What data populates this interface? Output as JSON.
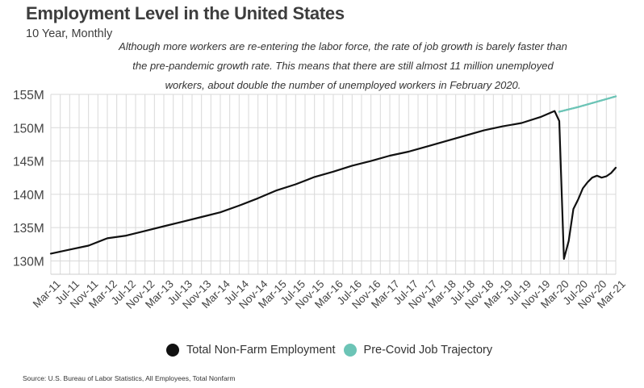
{
  "header": {
    "title": "Employment Level in the United States",
    "subtitle": "10 Year, Monthly",
    "note": "Although more workers are re-entering the labor force, the rate of job growth is barely faster than the pre-pandemic growth rate. This means that there are still almost 11 million unemployed workers, about double the number of unemployed workers in February 2020."
  },
  "source": "Source:  U.S. Bureau of Labor Statistics, All Employees, Total Nonfarm",
  "colors": {
    "total": "#111111",
    "trajectory": "#6cc4b6",
    "grid": "#d9d9d9"
  },
  "legend": [
    {
      "label": "Total Non-Farm Employment",
      "color": "#111111"
    },
    {
      "label": "Pre-Covid Job Trajectory",
      "color": "#6cc4b6"
    }
  ],
  "chart_data": {
    "type": "line",
    "x_unit": "month",
    "x_range": [
      "2011-03",
      "2021-03"
    ],
    "ylim": [
      128000000,
      155000000
    ],
    "y_ticks": [
      130000000,
      135000000,
      140000000,
      145000000,
      150000000,
      155000000
    ],
    "y_tick_labels": [
      "130M",
      "135M",
      "140M",
      "145M",
      "150M",
      "155M"
    ],
    "x_tick_labels": [
      "Mar-11",
      "Jul-11",
      "Nov-11",
      "Mar-12",
      "Jul-12",
      "Nov-12",
      "Mar-13",
      "Jul-13",
      "Nov-13",
      "Mar-14",
      "Jul-14",
      "Nov-14",
      "Mar-15",
      "Jul-15",
      "Nov-15",
      "Mar-16",
      "Jul-16",
      "Nov-16",
      "Mar-17",
      "Jul-17",
      "Nov-17",
      "Mar-18",
      "Jul-18",
      "Nov-18",
      "Mar-19",
      "Jul-19",
      "Nov-19",
      "Mar-20",
      "Jul-20",
      "Nov-20",
      "Mar-21"
    ],
    "grid": true,
    "legend_position": "bottom",
    "series": [
      {
        "name": "Total Non-Farm Employment",
        "x": [
          "2011-03",
          "2011-07",
          "2011-11",
          "2012-03",
          "2012-07",
          "2012-11",
          "2013-03",
          "2013-07",
          "2013-11",
          "2014-03",
          "2014-07",
          "2014-11",
          "2015-03",
          "2015-07",
          "2015-11",
          "2016-03",
          "2016-07",
          "2016-11",
          "2017-03",
          "2017-07",
          "2017-11",
          "2018-03",
          "2018-07",
          "2018-11",
          "2019-03",
          "2019-07",
          "2019-11",
          "2020-01",
          "2020-02",
          "2020-03",
          "2020-04",
          "2020-05",
          "2020-06",
          "2020-07",
          "2020-08",
          "2020-09",
          "2020-10",
          "2020-11",
          "2020-12",
          "2021-01",
          "2021-02",
          "2021-03"
        ],
        "values": [
          131.1,
          131.7,
          132.3,
          133.4,
          133.8,
          134.5,
          135.2,
          135.9,
          136.6,
          137.3,
          138.3,
          139.4,
          140.6,
          141.5,
          142.6,
          143.4,
          144.3,
          145.0,
          145.8,
          146.4,
          147.2,
          148.0,
          148.8,
          149.6,
          150.2,
          150.7,
          151.6,
          152.2,
          152.5,
          151.0,
          130.3,
          133.0,
          137.8,
          139.2,
          140.9,
          141.8,
          142.5,
          142.8,
          142.5,
          142.7,
          143.2,
          144.0
        ]
      },
      {
        "name": "Pre-Covid Job Trajectory",
        "x": [
          "2020-03",
          "2020-07",
          "2020-11",
          "2021-03"
        ],
        "values": [
          152.4,
          153.1,
          153.9,
          154.7
        ]
      }
    ]
  }
}
